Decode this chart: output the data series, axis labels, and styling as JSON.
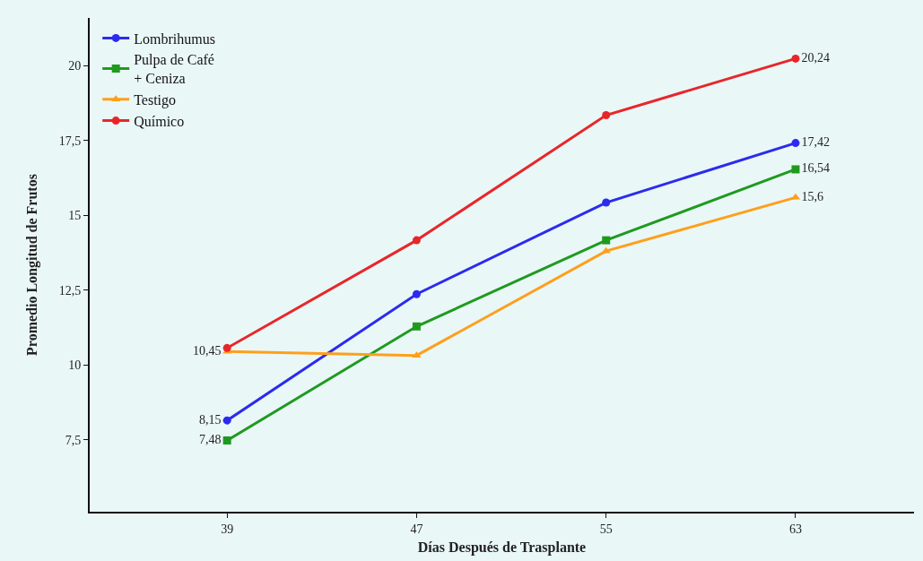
{
  "chart_data": {
    "type": "line",
    "xlabel": "Días Después de Trasplante",
    "ylabel": "Promedio Longitud de Frutos",
    "x": [
      39,
      47,
      55,
      63
    ],
    "xlim": [
      33.2,
      68
    ],
    "xticks": [
      39,
      47,
      55,
      63
    ],
    "ylim": [
      5.1,
      21.6
    ],
    "yticks": [
      {
        "value": 7.5,
        "label": "7,5"
      },
      10,
      {
        "value": 12.5,
        "label": "12,5"
      },
      15,
      {
        "value": 17.5,
        "label": "17,5"
      },
      20
    ],
    "grid": false,
    "legend": "top left",
    "series": [
      {
        "name": "Lombrihumus",
        "color": "#2b2bef",
        "marker": "circle",
        "values": [
          8.15,
          12.37,
          15.43,
          17.42
        ],
        "value_labels": [
          "8,15",
          null,
          null,
          "17,42"
        ]
      },
      {
        "name": "Pulpa de Café\n+ Ceniza",
        "color": "#1f9a1f",
        "marker": "square",
        "values": [
          7.48,
          11.29,
          14.17,
          16.54
        ],
        "value_labels": [
          "7,48",
          null,
          null,
          "16,54"
        ]
      },
      {
        "name": "Testigo",
        "color": "#ff9f1a",
        "marker": "triangle",
        "values": [
          10.45,
          10.32,
          13.81,
          15.6
        ],
        "value_labels": [
          "10,45",
          null,
          null,
          "15,6"
        ]
      },
      {
        "name": "Químico",
        "color": "#e8262a",
        "marker": "circle",
        "values": [
          10.57,
          14.17,
          18.35,
          20.24
        ],
        "value_labels": [
          null,
          null,
          null,
          "20,24"
        ]
      }
    ]
  }
}
